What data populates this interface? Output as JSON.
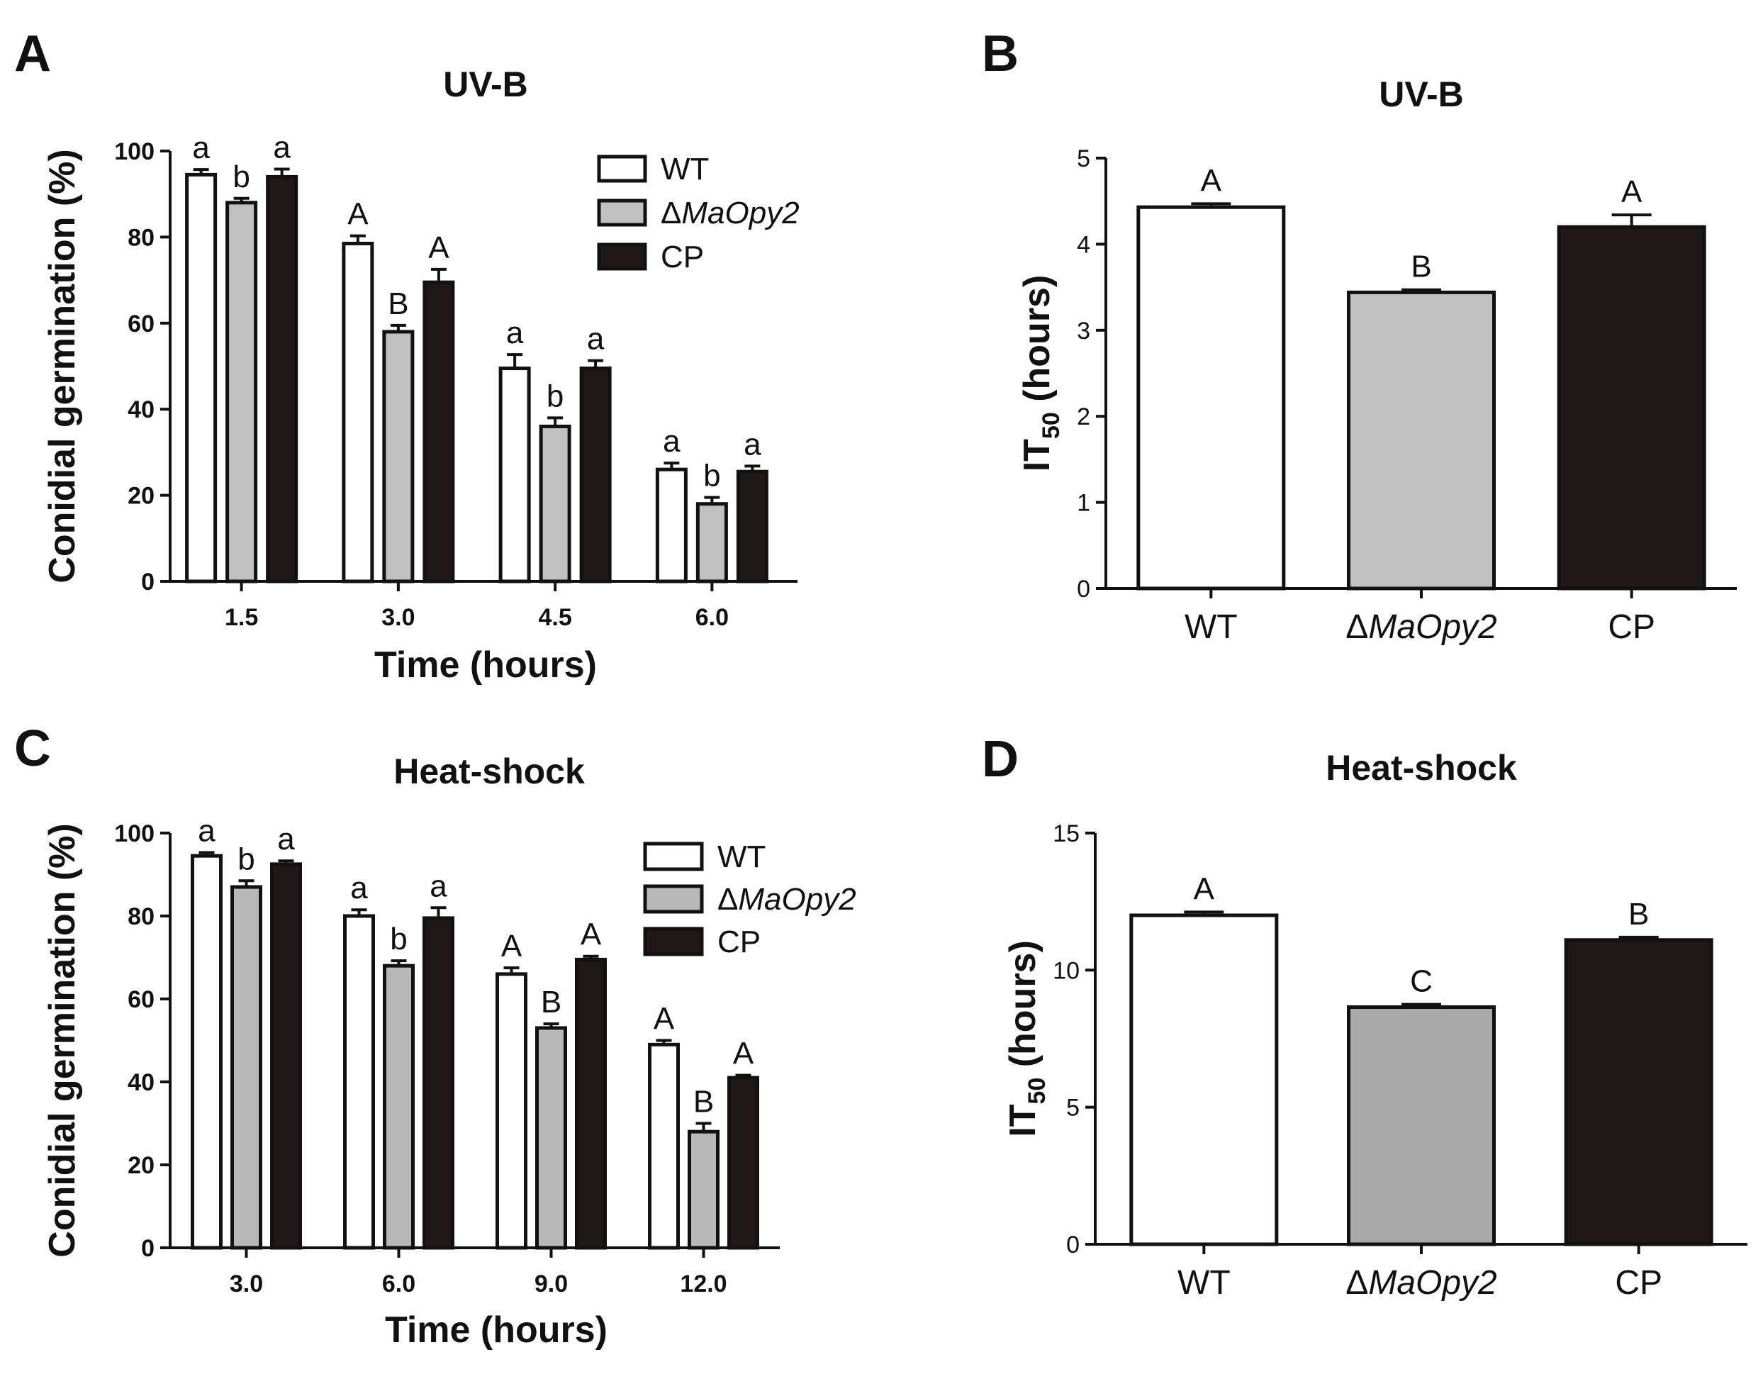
{
  "chart_data": [
    {
      "panel": "A",
      "type": "bar",
      "title": "UV-B",
      "xlabel": "Time (hours)",
      "ylabel": "Conidial germination (%)",
      "ylim": [
        0,
        100
      ],
      "yticks": [
        0,
        20,
        40,
        60,
        80,
        100
      ],
      "categories": [
        "1.5",
        "3.0",
        "4.5",
        "6.0"
      ],
      "legend": {
        "position": "top-right",
        "entries": [
          "WT",
          "ΔMaOpy2",
          "CP"
        ]
      },
      "series": [
        {
          "name": "WT",
          "color": "#ffffff",
          "values": [
            94.5,
            78.5,
            49.5,
            26
          ],
          "errors": [
            1.2,
            1.8,
            3.2,
            1.5
          ],
          "letters": [
            "a",
            "A",
            "a",
            "a"
          ]
        },
        {
          "name": "ΔMaOpy2",
          "color": "#c0c0c0",
          "values": [
            88,
            58,
            36,
            18
          ],
          "errors": [
            1.0,
            1.5,
            2.0,
            1.5
          ],
          "letters": [
            "b",
            "B",
            "b",
            "b"
          ]
        },
        {
          "name": "CP",
          "color": "#1f1718",
          "values": [
            94,
            69.5,
            49.5,
            25.5
          ],
          "errors": [
            1.8,
            3.0,
            1.8,
            1.3
          ],
          "letters": [
            "a",
            "A",
            "a",
            "a"
          ]
        }
      ]
    },
    {
      "panel": "B",
      "type": "bar",
      "title": "UV-B",
      "xlabel": "",
      "ylabel": "IT50 (hours)",
      "ylabel_main": "IT",
      "ylabel_sub": "50",
      "ylabel_rest": " (hours)",
      "ylim": [
        0,
        5
      ],
      "yticks": [
        0,
        1,
        2,
        3,
        4,
        5
      ],
      "categories": [
        "WT",
        "ΔMaOpy2",
        "CP"
      ],
      "colors": [
        "#ffffff",
        "#c0c0c0",
        "#1f1718"
      ],
      "values": [
        4.43,
        3.44,
        4.2
      ],
      "errors": [
        0.04,
        0.03,
        0.14
      ],
      "letters": [
        "A",
        "B",
        "A"
      ]
    },
    {
      "panel": "C",
      "type": "bar",
      "title": "Heat-shock",
      "xlabel": "Time (hours)",
      "ylabel": "Conidial germination (%)",
      "ylim": [
        0,
        100
      ],
      "yticks": [
        0,
        20,
        40,
        60,
        80,
        100
      ],
      "categories": [
        "3.0",
        "6.0",
        "9.0",
        "12.0"
      ],
      "legend": {
        "position": "top-right",
        "entries": [
          "WT",
          "ΔMaOpy2",
          "CP"
        ]
      },
      "series": [
        {
          "name": "WT",
          "color": "#ffffff",
          "values": [
            94.5,
            80,
            66,
            49
          ],
          "errors": [
            0.8,
            1.5,
            1.5,
            1.0
          ],
          "letters": [
            "a",
            "a",
            "A",
            "A"
          ]
        },
        {
          "name": "ΔMaOpy2",
          "color": "#b8b8b8",
          "values": [
            87,
            68,
            53,
            28
          ],
          "errors": [
            1.5,
            1.2,
            1.0,
            2.0
          ],
          "letters": [
            "b",
            "b",
            "B",
            "B"
          ]
        },
        {
          "name": "CP",
          "color": "#1f1718",
          "values": [
            92.5,
            79.5,
            69.5,
            41
          ],
          "errors": [
            0.8,
            2.5,
            0.8,
            0.6
          ],
          "letters": [
            "a",
            "a",
            "A",
            "A"
          ]
        }
      ]
    },
    {
      "panel": "D",
      "type": "bar",
      "title": "Heat-shock",
      "xlabel": "",
      "ylabel": "IT50 (hours)",
      "ylabel_main": "IT",
      "ylabel_sub": "50",
      "ylabel_rest": " (hours)",
      "ylim": [
        0,
        15
      ],
      "yticks": [
        0,
        5,
        10,
        15
      ],
      "categories": [
        "WT",
        "ΔMaOpy2",
        "CP"
      ],
      "colors": [
        "#ffffff",
        "#a9a9a9",
        "#1f1718"
      ],
      "values": [
        12.0,
        8.65,
        11.1
      ],
      "errors": [
        0.12,
        0.1,
        0.1
      ],
      "letters": [
        "A",
        "C",
        "B"
      ]
    }
  ]
}
